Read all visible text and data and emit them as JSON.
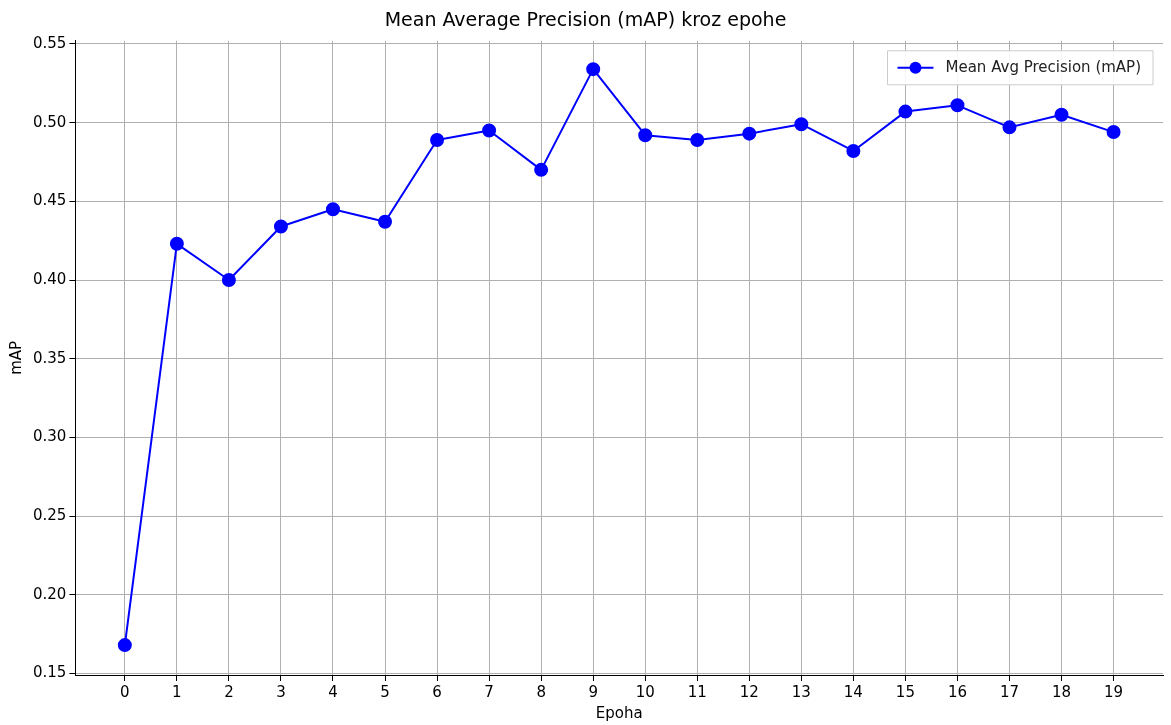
{
  "chart_data": {
    "type": "line",
    "title": "Mean Average Precision (mAP) kroz epohe",
    "xlabel": "Epoha",
    "ylabel": "mAP",
    "x": [
      0,
      1,
      2,
      3,
      4,
      5,
      6,
      7,
      8,
      9,
      10,
      11,
      12,
      13,
      14,
      15,
      16,
      17,
      18,
      19
    ],
    "series": [
      {
        "name": "Mean Avg Precision (mAP)",
        "color": "#0000ff",
        "values": [
          0.168,
          0.423,
          0.4,
          0.434,
          0.445,
          0.437,
          0.489,
          0.495,
          0.47,
          0.534,
          0.492,
          0.489,
          0.493,
          0.499,
          0.482,
          0.507,
          0.511,
          0.497,
          0.505,
          0.494
        ]
      }
    ],
    "xlim": [
      -0.95,
      19.95
    ],
    "xticks": [
      0,
      1,
      2,
      3,
      4,
      5,
      6,
      7,
      8,
      9,
      10,
      11,
      12,
      13,
      14,
      15,
      16,
      17,
      18,
      19
    ],
    "ylim": [
      0.149,
      0.552
    ],
    "yticks": [
      0.15,
      {
        "value": 0.2,
        "label": "0.20"
      },
      0.25,
      {
        "value": 0.3,
        "label": "0.30"
      },
      0.35,
      {
        "value": 0.4,
        "label": "0.40"
      },
      0.45,
      {
        "value": 0.5,
        "label": "0.50"
      },
      0.55
    ],
    "grid": true,
    "legend": "top right",
    "marker": "circle",
    "line_style": "solid"
  }
}
